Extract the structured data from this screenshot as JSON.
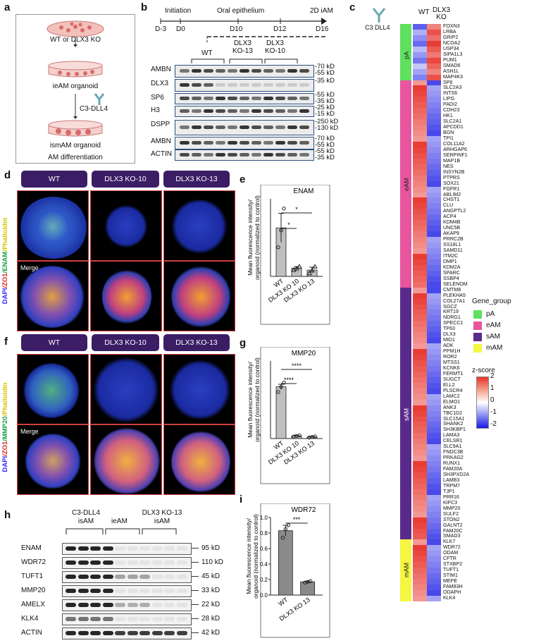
{
  "panel_a": {
    "label": "a",
    "wt_or_ko": "WT or DLX3 KO",
    "ieam": "ieAM organoid",
    "c3dll4": "C3-DLL4",
    "ismam": "ismAM organoid",
    "am_diff": "AM differentiation"
  },
  "panel_b": {
    "label": "b",
    "timeline": {
      "initiation": "Initiation",
      "oral": "Oral epithelium",
      "iam": "2D iAM",
      "days": [
        "D-3",
        "D0",
        "D10",
        "D12",
        "D16"
      ]
    },
    "groups": [
      "WT",
      "DLX3\nKO-13",
      "DLX3\nKO-10"
    ],
    "group_wt": "WT",
    "group_ko13": [
      "DLX3",
      "KO-13"
    ],
    "group_ko10": [
      "DLX3",
      "KO-10"
    ],
    "rows": [
      {
        "name": "AMBN",
        "kd": [
          "-70 kD",
          "-55 kD"
        ]
      },
      {
        "name": "DLX3",
        "kd": [
          "-35 kD"
        ]
      },
      {
        "name": "SP6",
        "kd": [
          "-55 kD",
          "-35 kD"
        ]
      },
      {
        "name": "H3",
        "kd": [
          "-25 kD",
          "-15 kD"
        ]
      },
      {
        "name": "DSPP",
        "kd": [
          "-250 kD",
          "-130 kD"
        ]
      },
      {
        "name": "AMBN",
        "kd": [
          "-70 kD",
          "-55 kD"
        ]
      },
      {
        "name": "ACTIN",
        "kd": [
          "-55 kD",
          "-35 kD"
        ]
      }
    ]
  },
  "panel_c": {
    "label": "c",
    "col_wt": "WT",
    "col_ko": "DLX3\nKO",
    "col_ko_lines": [
      "DLX3",
      "KO"
    ],
    "icon_label": "C3 DLL4",
    "legend_title": "Gene_group",
    "legend": [
      {
        "name": "pA",
        "color": "#5fe05f"
      },
      {
        "name": "eAM",
        "color": "#e8559e"
      },
      {
        "name": "sAM",
        "color": "#5a2a8a"
      },
      {
        "name": "mAM",
        "color": "#f5f542"
      }
    ],
    "zscore_title": "z-score",
    "zscore_ticks": [
      "2",
      "1",
      "0",
      "-1",
      "-2"
    ],
    "groups": [
      {
        "name": "pA",
        "color": "#5fe05f",
        "genes": [
          "FOXN3",
          "LRBA",
          "GRIP2",
          "NCOA2",
          "USP34",
          "SIPA1L3",
          "PUM1",
          "SMAD6",
          "ASH1L",
          "MAP4K3"
        ]
      },
      {
        "name": "eAM",
        "color": "#e8559e",
        "genes": [
          "SP6",
          "SLC2A3",
          "INTS6",
          "LIPG",
          "PADI2",
          "CDH23",
          "HK1",
          "SLC2A1",
          "APCDD1",
          "BGN",
          "TPI1",
          "COL11A2",
          "ARHGAP6",
          "SERPINF1",
          "MAP1B",
          "NES",
          "INSYN2B",
          "PTPRS",
          "SOX21",
          "FGFR1",
          "ABLIM2",
          "CHST1",
          "CLU",
          "ANGPTL2",
          "ACP4",
          "KDM4B",
          "UNC5B",
          "AKAP9",
          "PRRC2B",
          "SS18L1",
          "SAMD11",
          "ITM2C",
          "DMP1",
          "KDM2A",
          "SPARC",
          "SSBP4",
          "SELENOM"
        ]
      },
      {
        "name": "sAM",
        "color": "#5a2a8a",
        "genes": [
          "CMTM8",
          "PLEKHA5",
          "COL27A1",
          "SGCZ",
          "KRT19",
          "NDRG1",
          "SPECC1",
          "TP63",
          "DLX3",
          "MID1",
          "ADK",
          "PPM1H",
          "ROR2",
          "MTSS1",
          "KCNK6",
          "FERMT1",
          "SUGCT",
          "ELL2",
          "PLSCR4",
          "LAMC2",
          "ELMO1",
          "ANK3",
          "TBC1D2",
          "SLC15A1",
          "SHANK2",
          "SH3KBP1",
          "LAMA3",
          "CELSR1",
          "SLC9A1",
          "FNDC3B",
          "PRKAG2",
          "RUNX1",
          "FAM20A",
          "SH3PXD2A",
          "LAMB3",
          "TRPM7",
          "TJP1",
          "PRR16",
          "KIFC3",
          "MMP20",
          "SULF2",
          "STON2",
          "GALNT2",
          "FAM20C",
          "SMAD3"
        ]
      },
      {
        "name": "mAM",
        "color": "#f5f542",
        "genes": [
          "KLK7",
          "WDR72",
          "ODAM",
          "CFTR",
          "STXBP2",
          "TUFT1",
          "STIM1",
          "MEPE",
          "FAM83H",
          "ODAPH",
          "KLK4"
        ]
      }
    ]
  },
  "panel_d": {
    "label": "d",
    "headers": [
      "WT",
      "DLX3 KO-10",
      "DLX3 KO-13"
    ],
    "side_label": [
      "DAPI",
      "/ZO1",
      "/ENAM",
      "/Phalloidin"
    ],
    "merge": "Merge"
  },
  "panel_f": {
    "label": "f",
    "headers": [
      "WT",
      "DLX3 KO-10",
      "DLX3 KO-13"
    ],
    "side_label": [
      "DAPI",
      "/ZO1",
      "/MMP20",
      "/Phalloidin"
    ],
    "merge": "Merge"
  },
  "panel_e": {
    "label": "e",
    "ylabel_lines": [
      "Mean fluorescence intensity/",
      "organoid (normalized to control)"
    ],
    "chart_data": {
      "type": "bar",
      "title": "ENAM",
      "categories": [
        "WT",
        "DLX3 KO 10",
        "DLX3 KO 13"
      ],
      "values": [
        1.0,
        0.17,
        0.13
      ],
      "errors": [
        0.3,
        0.03,
        0.06
      ],
      "points": [
        [
          0.6,
          0.95,
          1.4
        ],
        [
          0.13,
          0.16,
          0.2
        ],
        [
          0.06,
          0.12,
          0.2
        ]
      ],
      "significance": [
        "*",
        "*"
      ],
      "ylim": [
        0,
        1.6
      ]
    }
  },
  "panel_g": {
    "label": "g",
    "ylabel_lines": [
      "Mean fluorescence intensity/",
      "organoid (normalized to control)"
    ],
    "chart_data": {
      "type": "bar",
      "title": "MMP20",
      "categories": [
        "WT",
        "DLX3 KO 10",
        "DLX3 KO 13"
      ],
      "values": [
        1.0,
        0.05,
        0.03
      ],
      "errors": [
        0.05,
        0.01,
        0.01
      ],
      "points": [
        [
          0.9,
          1.0,
          1.08
        ],
        [
          0.04,
          0.05,
          0.06
        ],
        [
          0.02,
          0.03,
          0.04
        ]
      ],
      "significance": [
        "****",
        "****"
      ],
      "ylim": [
        0,
        1.5
      ]
    }
  },
  "panel_i": {
    "label": "i",
    "ylabel_lines": [
      "Mean fluorescence intensity/",
      "organoid (normalized to control)"
    ],
    "chart_data": {
      "type": "bar",
      "title": "WDR72",
      "categories": [
        "WT",
        "DLX3 KO 13"
      ],
      "values": [
        0.83,
        0.17
      ],
      "errors": [
        0.07,
        0.01
      ],
      "points": [
        [
          0.74,
          0.85,
          0.9
        ],
        [
          0.16,
          0.17,
          0.18
        ]
      ],
      "significance": [
        "***"
      ],
      "yticks": [
        "0.0",
        "0.2",
        "0.4",
        "0.6",
        "0.8",
        "1.0"
      ],
      "ylim": [
        0,
        1.0
      ]
    }
  },
  "panel_h": {
    "label": "h",
    "group1": [
      "C3-DLL4",
      "isAM"
    ],
    "group2": "ieAM",
    "group3": [
      "DLX3 KO-13",
      "isAM"
    ],
    "rows": [
      {
        "name": "ENAM",
        "kd": "95 kD"
      },
      {
        "name": "WDR72",
        "kd": "110 kD"
      },
      {
        "name": "TUFT1",
        "kd": "45 kD"
      },
      {
        "name": "MMP20",
        "kd": "33 kD"
      },
      {
        "name": "AMELX",
        "kd": "22 kD"
      },
      {
        "name": "KLK4",
        "kd": "28 kD"
      },
      {
        "name": "ACTIN",
        "kd": "42 kD"
      }
    ]
  }
}
